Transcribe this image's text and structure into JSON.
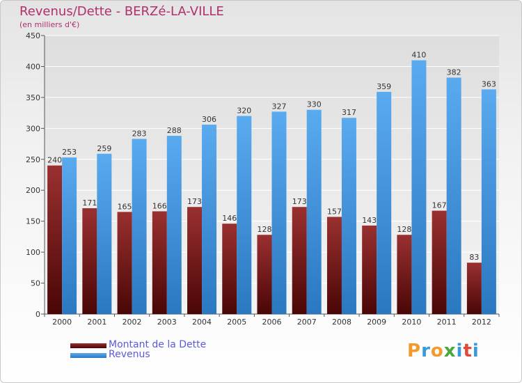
{
  "title": "Revenus/Dette - BERZé-LA-VILLE",
  "subtitle": "(en milliers d'€)",
  "logo": {
    "letters": [
      "P",
      "r",
      "o",
      "x",
      "i",
      "t",
      "i"
    ],
    "colors": [
      "#f29a2e",
      "#3a9ad9",
      "#f29a2e",
      "#4aa83a",
      "#3a9ad9",
      "#e04a3a",
      "#3a9ad9"
    ]
  },
  "colors": {
    "dette": "#7a1a1a",
    "revenus": "#3d8fd8",
    "title": "#b0306a",
    "legend_text": "#5a5adb"
  },
  "chart_data": {
    "type": "bar",
    "categories": [
      "2000",
      "2001",
      "2002",
      "2003",
      "2004",
      "2005",
      "2006",
      "2007",
      "2008",
      "2009",
      "2010",
      "2011",
      "2012"
    ],
    "series": [
      {
        "name": "Montant de la Dette",
        "values": [
          240,
          171,
          165,
          166,
          173,
          146,
          128,
          173,
          157,
          143,
          128,
          167,
          83
        ]
      },
      {
        "name": "Revenus",
        "values": [
          253,
          259,
          283,
          288,
          306,
          320,
          327,
          330,
          317,
          359,
          410,
          382,
          363
        ]
      }
    ],
    "ylim": [
      0,
      450
    ],
    "yticks": [
      0,
      50,
      100,
      150,
      200,
      250,
      300,
      350,
      400,
      450
    ],
    "grid": true,
    "legend_position": "bottom-left"
  }
}
